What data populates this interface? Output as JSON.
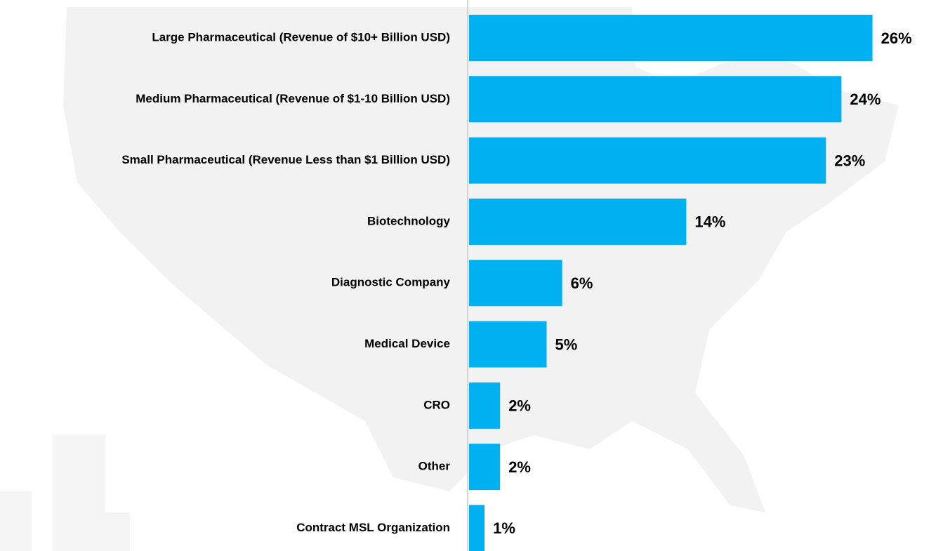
{
  "chart_data": {
    "type": "bar",
    "orientation": "horizontal",
    "categories": [
      "Large Pharmaceutical (Revenue of $10+ Billion USD)",
      "Medium Pharmaceutical (Revenue of $1-10 Billion USD)",
      "Small Pharmaceutical (Revenue Less than $1 Billion USD)",
      "Biotechnology",
      "Diagnostic Company",
      "Medical Device",
      "CRO",
      "Other",
      "Contract MSL Organization"
    ],
    "values": [
      26,
      24,
      23,
      14,
      6,
      5,
      2,
      2,
      1
    ],
    "value_labels": [
      "26%",
      "24%",
      "23%",
      "14%",
      "6%",
      "5%",
      "2%",
      "2%",
      "1%"
    ],
    "color": "#00b0f0"
  }
}
